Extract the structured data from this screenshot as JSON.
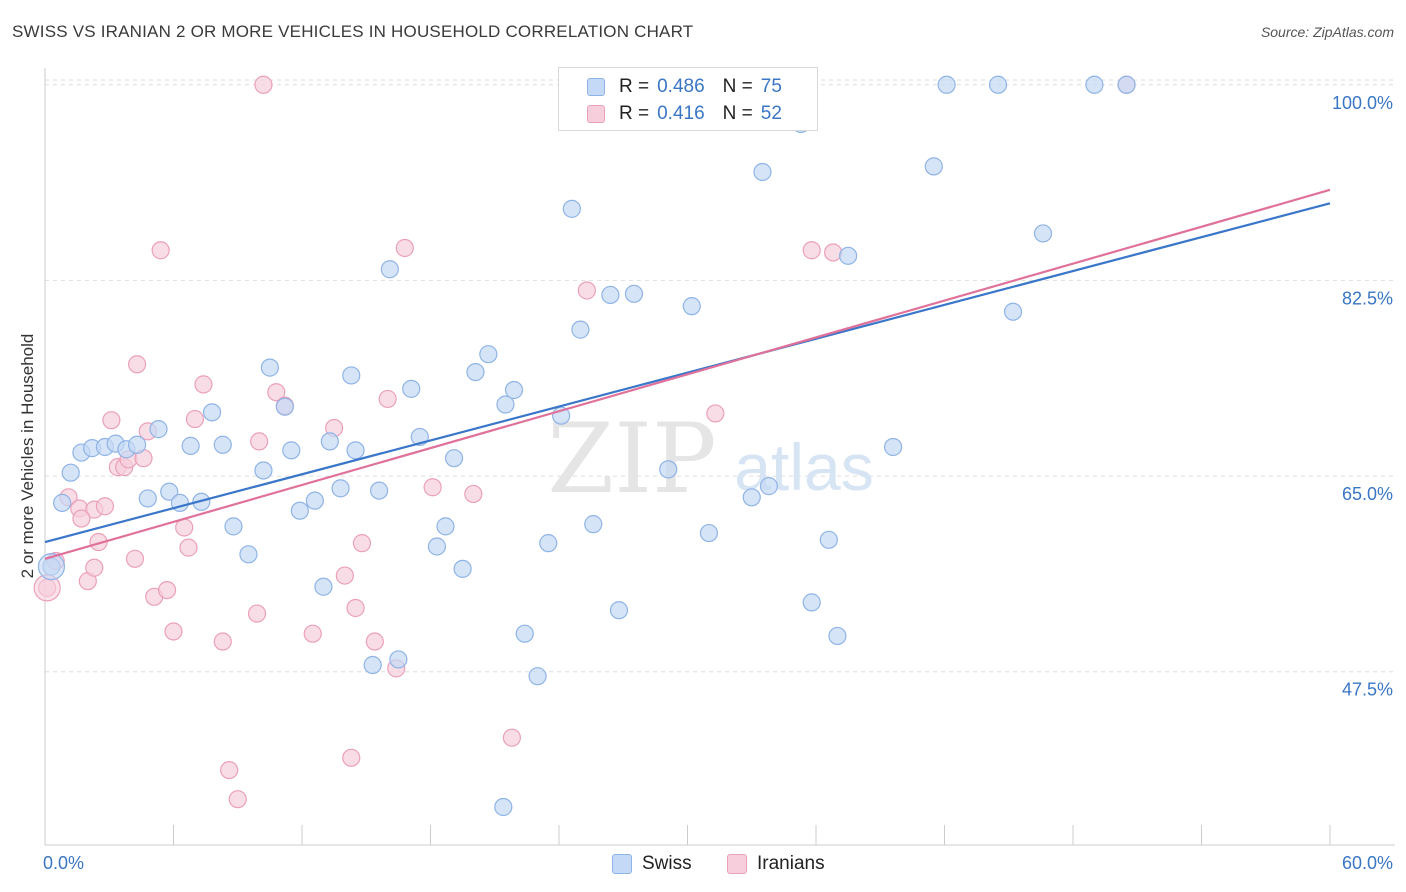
{
  "header": {
    "title": "SWISS VS IRANIAN 2 OR MORE VEHICLES IN HOUSEHOLD CORRELATION CHART",
    "source": "Source: ZipAtlas.com"
  },
  "watermark": {
    "zip": "ZIP",
    "atlas": "atlas"
  },
  "legend": {
    "swiss": {
      "r_label": "R = ",
      "r_value": "0.486",
      "n_label": "N = ",
      "n_value": "75"
    },
    "iranians": {
      "r_label": "R = ",
      "r_value": "0.416",
      "n_label": "N = ",
      "n_value": "52"
    }
  },
  "colors": {
    "swiss_fill": "#c4d9f5",
    "swiss_stroke": "#8fb4e6",
    "swiss_line": "#3a76c9",
    "iranians_fill": "#f7cfdc",
    "iranians_stroke": "#eba0ba",
    "iranians_line": "#e0719a",
    "axis_label": "#3a76c4",
    "grid": "#dddddd"
  },
  "chart_data": {
    "type": "scatter",
    "title": "SWISS VS IRANIAN 2 OR MORE VEHICLES IN HOUSEHOLD CORRELATION CHART",
    "xlabel": "",
    "ylabel": "2 or more Vehicles in Household",
    "xlim": [
      0,
      60
    ],
    "ylim": [
      32,
      101.5
    ],
    "x_tick_labels": [
      "0.0%",
      "60.0%"
    ],
    "y_ticks": [
      47.5,
      65.0,
      82.5,
      100.0
    ],
    "y_tick_labels": [
      "47.5%",
      "65.0%",
      "82.5%",
      "100.0%"
    ],
    "grid": true,
    "legend_position": "top-center",
    "series": [
      {
        "name": "Swiss",
        "r": 0.486,
        "n": 75,
        "trendline": {
          "x": [
            0,
            60
          ],
          "y": [
            59.1,
            89.4
          ]
        },
        "points": [
          [
            0.3,
            56.9
          ],
          [
            0.8,
            62.6
          ],
          [
            1.2,
            65.3
          ],
          [
            1.7,
            67.1
          ],
          [
            2.2,
            67.5
          ],
          [
            2.8,
            67.6
          ],
          [
            3.3,
            67.9
          ],
          [
            3.8,
            67.4
          ],
          [
            4.3,
            67.8
          ],
          [
            4.8,
            63.0
          ],
          [
            5.3,
            69.2
          ],
          [
            5.8,
            63.6
          ],
          [
            6.3,
            62.6
          ],
          [
            6.8,
            67.7
          ],
          [
            7.3,
            62.7
          ],
          [
            7.8,
            70.7
          ],
          [
            8.3,
            67.8
          ],
          [
            8.8,
            60.5
          ],
          [
            9.5,
            58.0
          ],
          [
            10.2,
            65.5
          ],
          [
            10.5,
            74.7
          ],
          [
            11.2,
            71.2
          ],
          [
            11.5,
            67.3
          ],
          [
            11.9,
            61.9
          ],
          [
            12.6,
            62.8
          ],
          [
            13.0,
            55.1
          ],
          [
            13.3,
            68.1
          ],
          [
            13.8,
            63.9
          ],
          [
            14.3,
            74.0
          ],
          [
            14.5,
            67.3
          ],
          [
            15.3,
            48.1
          ],
          [
            15.6,
            63.7
          ],
          [
            16.1,
            83.5
          ],
          [
            16.5,
            48.6
          ],
          [
            17.1,
            72.8
          ],
          [
            17.5,
            68.5
          ],
          [
            18.3,
            58.7
          ],
          [
            18.7,
            60.5
          ],
          [
            19.1,
            66.6
          ],
          [
            19.5,
            56.7
          ],
          [
            20.1,
            74.3
          ],
          [
            20.7,
            75.9
          ],
          [
            21.5,
            71.4
          ],
          [
            21.9,
            72.7
          ],
          [
            22.4,
            50.9
          ],
          [
            23.0,
            47.1
          ],
          [
            23.5,
            59.0
          ],
          [
            24.1,
            70.4
          ],
          [
            24.6,
            88.9
          ],
          [
            25.0,
            78.1
          ],
          [
            25.6,
            60.7
          ],
          [
            26.4,
            81.2
          ],
          [
            26.8,
            53.0
          ],
          [
            27.5,
            81.3
          ],
          [
            29.1,
            65.6
          ],
          [
            30.2,
            80.2
          ],
          [
            31.0,
            59.9
          ],
          [
            32.5,
            100.0
          ],
          [
            33.0,
            63.1
          ],
          [
            33.5,
            92.2
          ],
          [
            33.8,
            64.1
          ],
          [
            35.3,
            96.5
          ],
          [
            35.8,
            53.7
          ],
          [
            36.6,
            59.3
          ],
          [
            37.0,
            50.7
          ],
          [
            37.5,
            84.7
          ],
          [
            39.6,
            67.6
          ],
          [
            41.5,
            92.7
          ],
          [
            42.1,
            100.0
          ],
          [
            44.5,
            100.0
          ],
          [
            45.2,
            79.7
          ],
          [
            46.6,
            86.7
          ],
          [
            49.0,
            100.0
          ],
          [
            50.5,
            100.0
          ],
          [
            21.4,
            35.4
          ]
        ]
      },
      {
        "name": "Iranians",
        "r": 0.416,
        "n": 52,
        "trendline": {
          "x": [
            0,
            60
          ],
          "y": [
            57.6,
            90.6
          ]
        },
        "points": [
          [
            0.1,
            55.0
          ],
          [
            0.5,
            57.4
          ],
          [
            1.1,
            63.1
          ],
          [
            1.6,
            62.1
          ],
          [
            2.0,
            55.6
          ],
          [
            2.3,
            62.0
          ],
          [
            2.5,
            59.1
          ],
          [
            2.8,
            62.3
          ],
          [
            3.1,
            70.0
          ],
          [
            3.4,
            65.8
          ],
          [
            3.7,
            65.8
          ],
          [
            3.9,
            66.5
          ],
          [
            4.2,
            57.6
          ],
          [
            4.3,
            75.0
          ],
          [
            4.6,
            66.6
          ],
          [
            4.8,
            69.0
          ],
          [
            5.1,
            54.2
          ],
          [
            5.4,
            85.2
          ],
          [
            5.7,
            54.8
          ],
          [
            6.0,
            51.1
          ],
          [
            6.5,
            60.4
          ],
          [
            6.7,
            58.6
          ],
          [
            7.0,
            70.1
          ],
          [
            7.4,
            73.2
          ],
          [
            8.3,
            50.2
          ],
          [
            8.6,
            38.7
          ],
          [
            9.0,
            36.1
          ],
          [
            9.9,
            52.7
          ],
          [
            10.0,
            68.1
          ],
          [
            10.2,
            100.0
          ],
          [
            10.8,
            72.5
          ],
          [
            11.2,
            71.3
          ],
          [
            12.5,
            50.9
          ],
          [
            13.5,
            69.3
          ],
          [
            14.0,
            56.1
          ],
          [
            14.3,
            39.8
          ],
          [
            14.5,
            53.2
          ],
          [
            14.8,
            59.0
          ],
          [
            15.4,
            50.2
          ],
          [
            16.0,
            71.9
          ],
          [
            16.4,
            47.8
          ],
          [
            16.8,
            85.4
          ],
          [
            18.1,
            64.0
          ],
          [
            20.0,
            63.4
          ],
          [
            21.8,
            41.6
          ],
          [
            25.3,
            81.6
          ],
          [
            31.3,
            70.6
          ],
          [
            35.8,
            85.2
          ],
          [
            36.8,
            85.0
          ],
          [
            50.5,
            100.0
          ],
          [
            1.7,
            61.2
          ],
          [
            2.3,
            56.8
          ]
        ]
      }
    ]
  }
}
